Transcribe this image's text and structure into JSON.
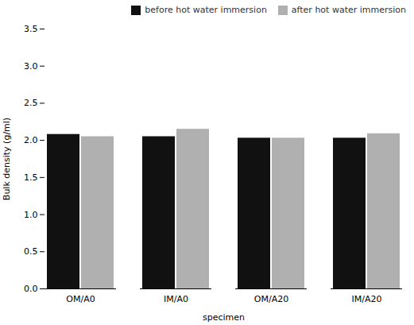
{
  "chart_data": {
    "type": "bar",
    "categories": [
      "OM/A0",
      "IM/A0",
      "OM/A20",
      "IM/A20"
    ],
    "series": [
      {
        "name": "before hot water immersion",
        "color": "#111111",
        "values": [
          2.08,
          2.05,
          2.03,
          2.03
        ]
      },
      {
        "name": "after hot water immersion",
        "color": "#b0b0b0",
        "values": [
          2.05,
          2.15,
          2.03,
          2.09
        ]
      }
    ],
    "xlabel": "specimen",
    "ylabel": "Bulk density (g/ml)",
    "ylim": [
      0.0,
      3.5
    ],
    "yticks": [
      {
        "value": 0,
        "label": "0.0"
      },
      {
        "value": 0.5,
        "label": "0.5"
      },
      {
        "value": 1,
        "label": "1.0"
      },
      {
        "value": 1.5,
        "label": "1.5"
      },
      {
        "value": 2,
        "label": "2.0"
      },
      {
        "value": 2.5,
        "label": "2.5"
      },
      {
        "value": 3,
        "label": "3.0"
      },
      {
        "value": 3.5,
        "label": "3.5"
      }
    ],
    "grid": false,
    "legend": "upper right"
  }
}
